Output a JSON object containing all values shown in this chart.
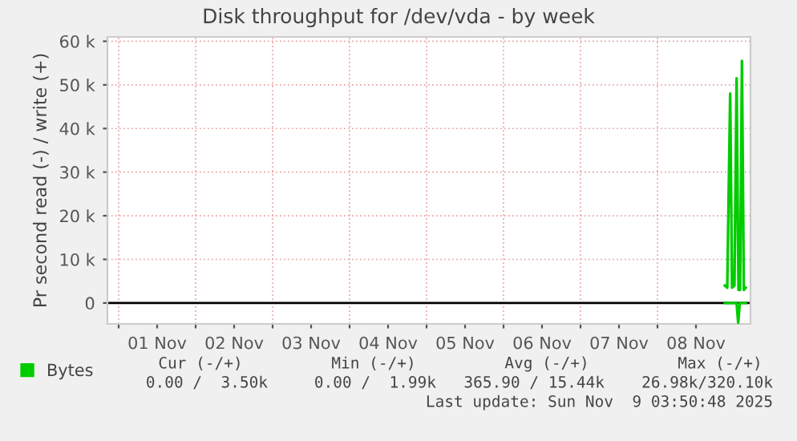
{
  "chart_data": {
    "type": "line",
    "title": "Disk throughput for /dev/vda - by week",
    "ylabel": "Pr second read (-) / write (+)",
    "series": [
      {
        "name": "Bytes",
        "color": "#00cc00",
        "x": [
          "2025-11-08T21:00",
          "2025-11-08T21:45",
          "2025-11-08T22:40",
          "2025-11-08T23:15",
          "2025-11-09T00:00",
          "2025-11-09T00:40",
          "2025-11-09T01:15",
          "2025-11-09T01:45",
          "2025-11-09T02:20",
          "2025-11-09T02:55",
          "2025-11-09T03:30"
        ],
        "values": [
          4000,
          3500,
          48000,
          3500,
          4000,
          51500,
          3000,
          3000,
          55500,
          3000,
          3500
        ]
      },
      {
        "color": "#00cc00",
        "x": [
          "2025-11-08T21:00",
          "2025-11-09T00:40",
          "2025-11-09T01:10",
          "2025-11-09T01:40",
          "2025-11-09T03:30"
        ],
        "values": [
          0,
          0,
          -4500,
          0,
          0
        ]
      }
    ],
    "xlim": [
      "2025-10-31T20:30",
      "2025-11-09T05:00"
    ],
    "xticks": [
      {
        "value": "2025-11-01T00:00",
        "label": null
      },
      {
        "value": "2025-11-01T12:00",
        "label": "01 Nov"
      },
      {
        "value": "2025-11-02T00:00",
        "label": null
      },
      {
        "value": "2025-11-02T12:00",
        "label": "02 Nov"
      },
      {
        "value": "2025-11-03T00:00",
        "label": null
      },
      {
        "value": "2025-11-03T12:00",
        "label": "03 Nov"
      },
      {
        "value": "2025-11-04T00:00",
        "label": null
      },
      {
        "value": "2025-11-04T12:00",
        "label": "04 Nov"
      },
      {
        "value": "2025-11-05T00:00",
        "label": null
      },
      {
        "value": "2025-11-05T12:00",
        "label": "05 Nov"
      },
      {
        "value": "2025-11-06T00:00",
        "label": null
      },
      {
        "value": "2025-11-06T12:00",
        "label": "06 Nov"
      },
      {
        "value": "2025-11-07T00:00",
        "label": null
      },
      {
        "value": "2025-11-07T12:00",
        "label": "07 Nov"
      },
      {
        "value": "2025-11-08T00:00",
        "label": null
      },
      {
        "value": "2025-11-08T12:00",
        "label": "08 Nov"
      }
    ],
    "ylim": [
      -4800,
      61000
    ],
    "yticks": [
      0,
      {
        "value": 10000,
        "label": "10 k"
      },
      {
        "value": 20000,
        "label": "20 k"
      },
      {
        "value": 30000,
        "label": "30 k"
      },
      {
        "value": 40000,
        "label": "40 k"
      },
      {
        "value": 50000,
        "label": "50 k"
      },
      {
        "value": 60000,
        "label": "60 k"
      }
    ],
    "ref_lines": [
      {
        "axis": "y",
        "value": 0,
        "color": "#000000"
      }
    ],
    "grid": true,
    "legend": "bottom left",
    "annotations": [
      "Cur (-/+)",
      "Min (-/+)",
      "Avg (-/+)",
      "Max (-/+)",
      "0.00 /  3.50k",
      "0.00 /  1.99k",
      "365.90 / 15.44k",
      "26.98k/320.10k",
      "Last update: Sun Nov  9 03:50:48 2025"
    ]
  }
}
